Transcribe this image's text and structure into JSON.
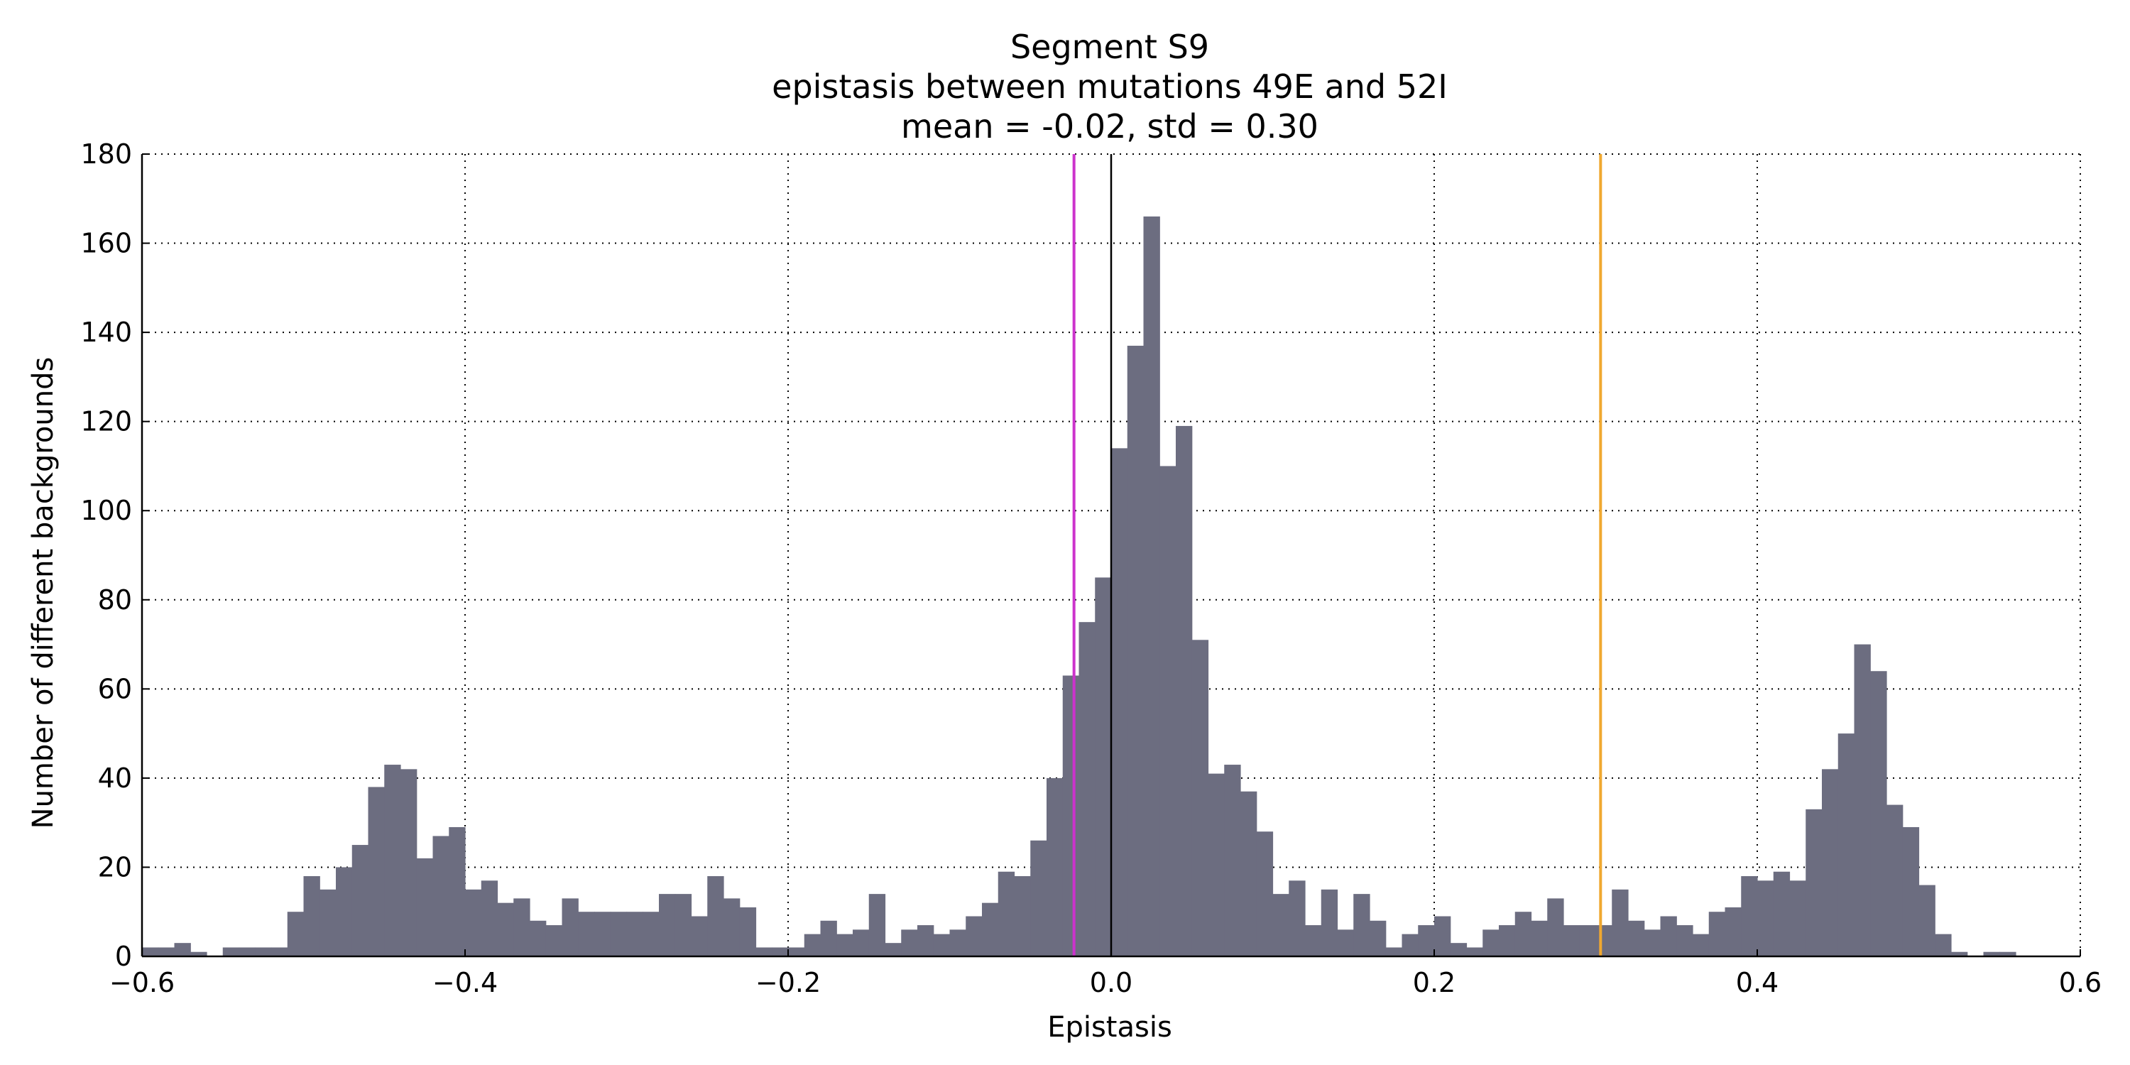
{
  "chart_data": {
    "type": "bar",
    "title": "Segment S9",
    "subtitle": "epistasis between mutations 49E and 52I",
    "stats_line": "mean = -0.02, std = 0.30",
    "xlabel": "Epistasis",
    "ylabel": "Number of different backgrounds",
    "xlim": [
      -0.6,
      0.6
    ],
    "ylim": [
      0,
      180
    ],
    "x_ticks": [
      -0.6,
      -0.4,
      -0.2,
      0.0,
      0.2,
      0.4,
      0.6
    ],
    "x_tick_labels": [
      "−0.6",
      "−0.4",
      "−0.2",
      "0.0",
      "0.2",
      "0.4",
      "0.6"
    ],
    "y_ticks": [
      0,
      20,
      40,
      60,
      80,
      100,
      120,
      140,
      160,
      180
    ],
    "y_tick_labels": [
      "0",
      "20",
      "40",
      "60",
      "80",
      "100",
      "120",
      "140",
      "160",
      "180"
    ],
    "grid": true,
    "bin_start": -0.6,
    "bin_width": 0.01,
    "counts": [
      2,
      2,
      3,
      1,
      0,
      2,
      2,
      2,
      2,
      10,
      18,
      15,
      20,
      25,
      38,
      43,
      42,
      22,
      27,
      29,
      15,
      17,
      12,
      13,
      8,
      7,
      13,
      10,
      10,
      10,
      10,
      10,
      14,
      14,
      9,
      18,
      13,
      11,
      2,
      2,
      2,
      5,
      8,
      5,
      6,
      14,
      3,
      6,
      7,
      5,
      6,
      9,
      12,
      19,
      18,
      26,
      40,
      63,
      75,
      85,
      114,
      137,
      166,
      110,
      119,
      71,
      41,
      43,
      37,
      28,
      14,
      17,
      7,
      15,
      6,
      14,
      8,
      2,
      5,
      7,
      9,
      3,
      2,
      6,
      7,
      10,
      8,
      13,
      7,
      7,
      7,
      15,
      8,
      6,
      9,
      7,
      5,
      10,
      11,
      18,
      17,
      19,
      17,
      33,
      42,
      50,
      70,
      64,
      34,
      29,
      16,
      5,
      1,
      0,
      1,
      1,
      0,
      0,
      0,
      0
    ],
    "bar_color": "#6c6d80",
    "vertical_lines": [
      {
        "x": -0.023,
        "color": "#cc33cc"
      },
      {
        "x": 0.0,
        "color": "#000000"
      },
      {
        "x": 0.303,
        "color": "#f0a830"
      }
    ]
  }
}
